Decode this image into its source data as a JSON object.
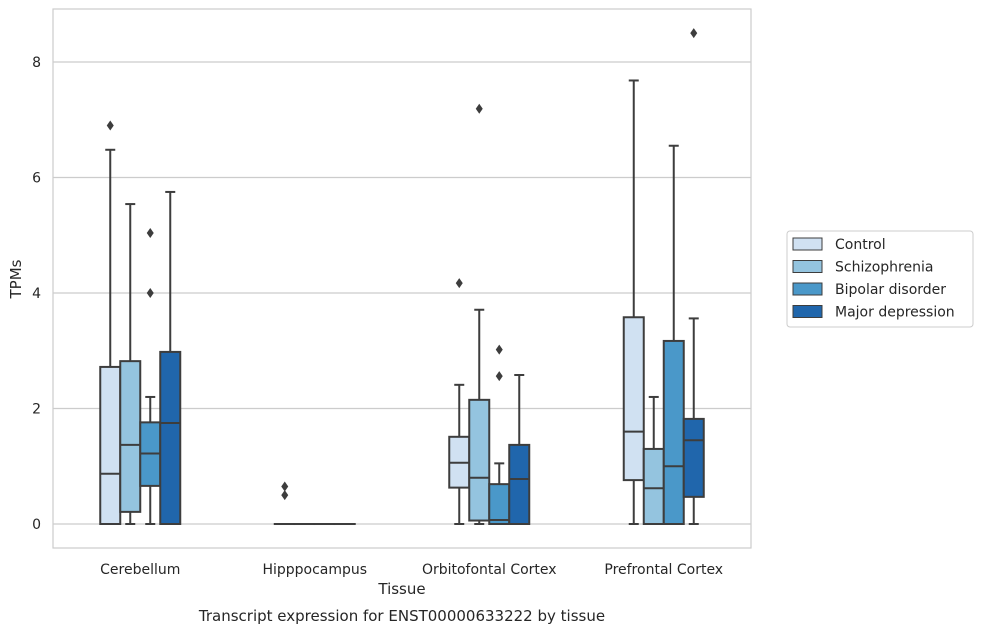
{
  "chart_data": {
    "type": "box",
    "title": "",
    "caption": "Transcript expression for ENST00000633222 by tissue",
    "xlabel": "Tissue",
    "ylabel": "TPMs",
    "ylim": [
      -0.4,
      8.9
    ],
    "yticks": [
      0,
      2,
      4,
      6,
      8
    ],
    "grid": "horizontal",
    "legend_position": "right",
    "categories": [
      "Cerebellum",
      "Hipppocampus",
      "Orbitofontal Cortex",
      "Prefrontal Cortex"
    ],
    "series": [
      {
        "name": "Control",
        "color": "#d0e1f2",
        "boxes": [
          {
            "whislo": 0,
            "q1": 0,
            "med": 0.87,
            "q3": 2.72,
            "whishi": 6.48,
            "fliers": [
              6.9
            ]
          },
          {
            "whislo": 0,
            "q1": 0,
            "med": 0,
            "q3": 0,
            "whishi": 0,
            "fliers": [
              0.5,
              0.65
            ]
          },
          {
            "whislo": 0,
            "q1": 0.63,
            "med": 1.06,
            "q3": 1.51,
            "whislo_note": "",
            "whishi": 2.41,
            "fliers": [
              4.17
            ]
          },
          {
            "whislo": 0,
            "q1": 0.76,
            "med": 1.6,
            "q3": 3.58,
            "whishi": 7.68,
            "fliers": []
          }
        ]
      },
      {
        "name": "Schizophrenia",
        "color": "#94c4df",
        "boxes": [
          {
            "whislo": 0,
            "q1": 0.21,
            "med": 1.37,
            "q3": 2.82,
            "whishi": 5.54,
            "fliers": []
          },
          {
            "whislo": 0,
            "q1": 0,
            "med": 0,
            "q3": 0,
            "whishi": 0,
            "fliers": []
          },
          {
            "whislo": 0,
            "q1": 0.06,
            "med": 0.8,
            "q3": 2.15,
            "whishi": 3.71,
            "fliers": [
              7.19
            ]
          },
          {
            "whislo": 0,
            "q1": 0,
            "med": 0.62,
            "q3": 1.3,
            "whishi": 2.2,
            "fliers": []
          }
        ]
      },
      {
        "name": "Bipolar disorder",
        "color": "#4a98c9",
        "boxes": [
          {
            "whislo": 0,
            "q1": 0.66,
            "med": 1.22,
            "q3": 1.76,
            "whishi": 2.2,
            "fliers": [
              4.0,
              5.04
            ]
          },
          {
            "whislo": 0,
            "q1": 0,
            "med": 0,
            "q3": 0,
            "whishi": 0,
            "fliers": []
          },
          {
            "whislo": 0,
            "q1": 0,
            "med": 0.07,
            "q3": 0.69,
            "whishi": 1.05,
            "fliers": [
              2.56,
              3.02
            ]
          },
          {
            "whislo": 0,
            "q1": 0,
            "med": 1.0,
            "q3": 3.17,
            "whishi": 6.55,
            "fliers": []
          }
        ]
      },
      {
        "name": "Major depression",
        "color": "#2066ac",
        "boxes": [
          {
            "whislo": 0,
            "q1": 0,
            "med": 1.75,
            "q3": 2.98,
            "whishi": 5.75,
            "fliers": []
          },
          {
            "whislo": 0,
            "q1": 0,
            "med": 0,
            "q3": 0,
            "whishi": 0,
            "fliers": []
          },
          {
            "whislo": 0,
            "q1": 0,
            "med": 0.78,
            "q3": 1.37,
            "whishi": 2.58,
            "fliers": []
          },
          {
            "whislo": 0,
            "q1": 0.47,
            "med": 1.45,
            "q3": 1.82,
            "whishi": 3.56,
            "fliers": [
              8.5
            ]
          }
        ]
      }
    ]
  }
}
